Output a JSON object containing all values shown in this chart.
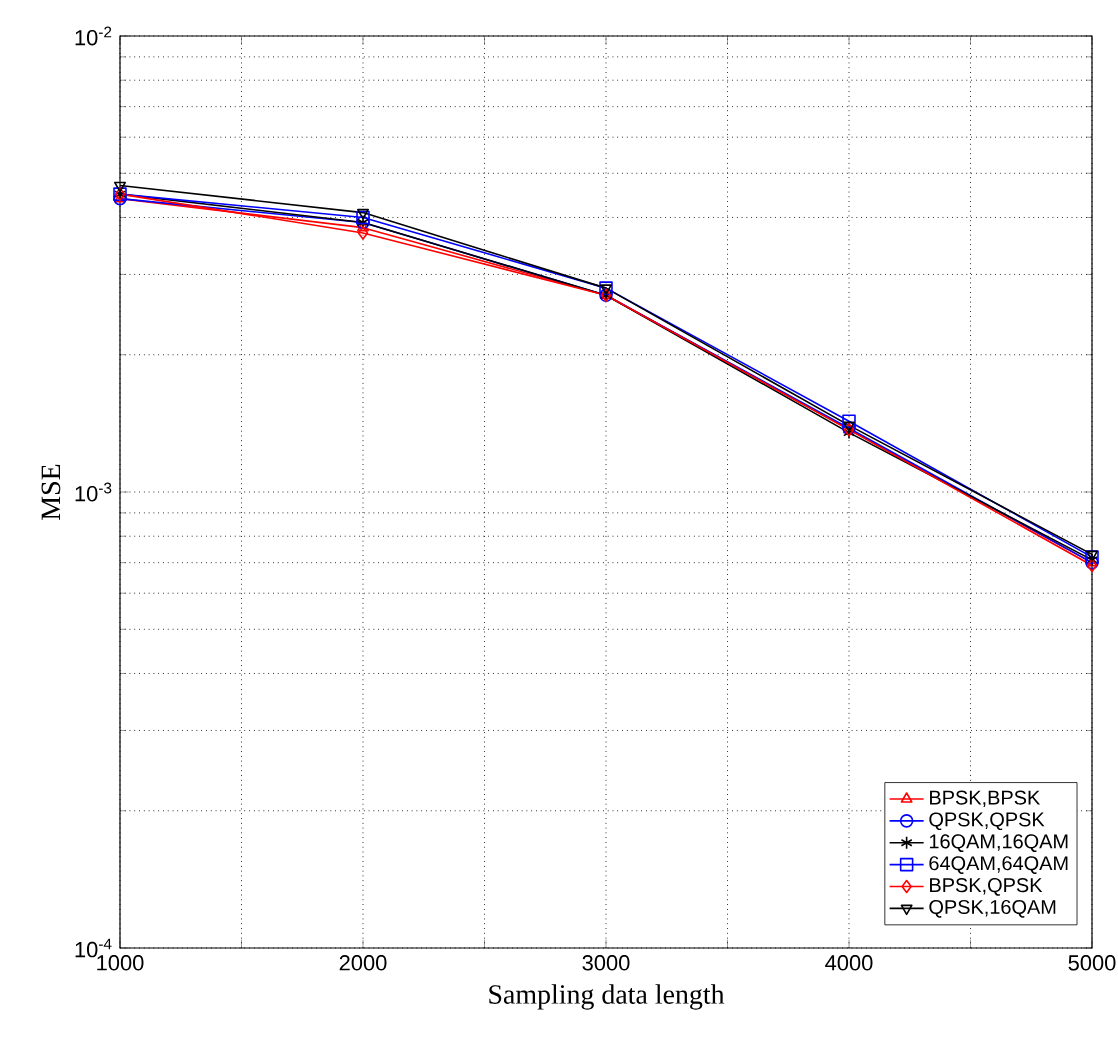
{
  "chart_data": {
    "type": "line",
    "xlabel": "Sampling data length",
    "ylabel": "MSE",
    "x": [
      1000,
      2000,
      3000,
      4000,
      5000
    ],
    "series": [
      {
        "name": "BPSK,BPSK",
        "color": "#ff0000",
        "marker": "triangle",
        "values": [
          0.0044,
          0.0038,
          0.0027,
          0.00137,
          0.0007
        ]
      },
      {
        "name": "QPSK,QPSK",
        "color": "#0000ff",
        "marker": "circle",
        "values": [
          0.0044,
          0.0039,
          0.0027,
          0.00138,
          0.0007
        ]
      },
      {
        "name": "16QAM,16QAM",
        "color": "#000000",
        "marker": "cross",
        "values": [
          0.0045,
          0.0039,
          0.0027,
          0.00135,
          0.00071
        ]
      },
      {
        "name": "64QAM,64QAM",
        "color": "#0000ff",
        "marker": "square",
        "values": [
          0.0045,
          0.004,
          0.0028,
          0.00143,
          0.00072
        ]
      },
      {
        "name": "BPSK,QPSK",
        "color": "#ff0000",
        "marker": "diamond",
        "values": [
          0.0045,
          0.0037,
          0.0027,
          0.00137,
          0.00069
        ]
      },
      {
        "name": "QPSK,16QAM",
        "color": "#000000",
        "marker": "triangle_down",
        "values": [
          0.0047,
          0.0041,
          0.0028,
          0.0014,
          0.00073
        ]
      }
    ],
    "xlim": [
      1000,
      5000
    ],
    "xticks": [
      1000,
      {
        "value": 1500,
        "label": null
      },
      2000,
      {
        "value": 2500,
        "label": null
      },
      3000,
      {
        "value": 3500,
        "label": null
      },
      4000,
      {
        "value": 4500,
        "label": null
      },
      5000
    ],
    "ylim": [
      0.0001,
      0.01
    ],
    "yticks": [
      {
        "value": 0.0001,
        "label": "10$^{-4}$"
      },
      {
        "value": 0.001,
        "label": "10$^{-3}$"
      },
      {
        "value": 0.01,
        "label": "10$^{-2}$"
      }
    ],
    "log": "y",
    "grid": true,
    "legend": "bottom right",
    "line_style": "solid"
  }
}
